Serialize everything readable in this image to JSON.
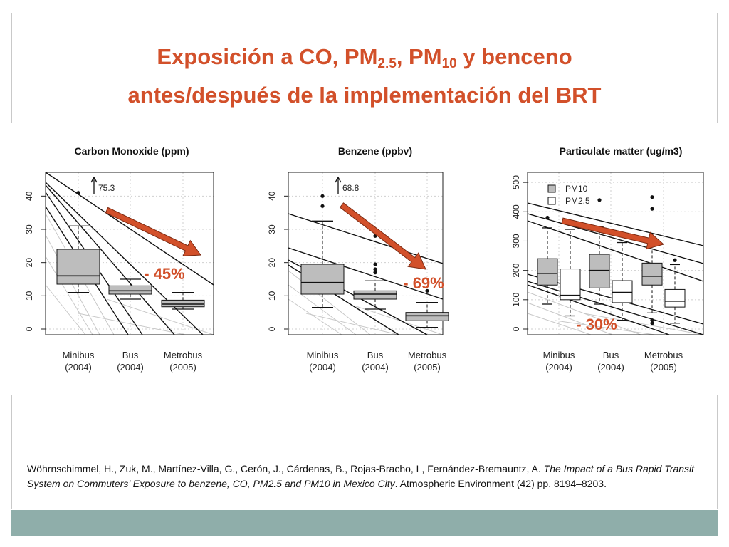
{
  "slide": {
    "title_parts": [
      "Exposición a CO, PM",
      "2.5",
      ", PM",
      "10",
      " y benceno"
    ],
    "title_line2": "antes/después de la implementación del BRT",
    "citation_authors": "Wöhrnschimmel, H., Zuk, M., Martínez-Villa, G., Cerón, J., Cárdenas, B., Rojas-Bracho, L, Fernández-Bremauntz, A. ",
    "citation_title": "The Impact of a Bus Rapid Transit System on Commuters’ Exposure to benzene, CO, PM2.5 and PM10 in Mexico City",
    "citation_journal": ". Atmospheric Environment (42) pp. 8194–8203.",
    "colors": {
      "title": "#d2502a",
      "arrow": "#d2502a",
      "box_fill": "#bdbdbd",
      "bar": "#8faeaa"
    }
  },
  "chart_data": [
    {
      "type": "boxplot",
      "title": "Carbon Monoxide (ppm)",
      "categories": [
        "Minibus\n(2004)",
        "Bus\n(2004)",
        "Metrobus\n(2005)"
      ],
      "ylim": [
        0,
        45
      ],
      "yticks": [
        0,
        10,
        20,
        30,
        40
      ],
      "boxes": [
        {
          "min": 11,
          "q1": 13.5,
          "median": 16,
          "q3": 24,
          "max": 31,
          "outliers": [
            41
          ]
        },
        {
          "min": 9,
          "q1": 10.5,
          "median": 11.5,
          "q3": 13,
          "max": 15,
          "outliers": []
        },
        {
          "min": 6,
          "q1": 6.7,
          "median": 7.5,
          "q3": 8.7,
          "max": 11,
          "outliers": []
        }
      ],
      "offscale_label": "75.3",
      "change_label": "- 45%",
      "grid": true
    },
    {
      "type": "boxplot",
      "title": "Benzene (ppbv)",
      "categories": [
        "Minibus\n(2004)",
        "Bus\n(2004)",
        "Metrobus\n(2005)"
      ],
      "ylim": [
        0,
        45
      ],
      "yticks": [
        0,
        10,
        20,
        30,
        40
      ],
      "boxes": [
        {
          "min": 6.5,
          "q1": 10.5,
          "median": 14,
          "q3": 19.5,
          "max": 32.5,
          "outliers": [
            37,
            40
          ]
        },
        {
          "min": 6,
          "q1": 9,
          "median": 10.5,
          "q3": 11.5,
          "max": 14.5,
          "outliers": [
            17,
            18,
            19.5,
            28
          ]
        },
        {
          "min": 0.5,
          "q1": 2.5,
          "median": 4,
          "q3": 5,
          "max": 8,
          "outliers": [
            11.5
          ]
        }
      ],
      "offscale_label": "68.8",
      "change_label": "- 69%",
      "grid": true
    },
    {
      "type": "boxplot",
      "title": "Particulate matter (ug/m3)",
      "categories": [
        "Minibus\n(2004)",
        "Bus\n(2004)",
        "Metrobus\n(2005)"
      ],
      "ylim": [
        0,
        510
      ],
      "yticks": [
        0,
        100,
        200,
        300,
        400,
        500
      ],
      "series": [
        {
          "name": "PM10",
          "fill": "#bdbdbd",
          "boxes": [
            {
              "min": 85,
              "q1": 150,
              "median": 190,
              "q3": 240,
              "max": 345,
              "outliers": [
                380
              ]
            },
            {
              "min": 85,
              "q1": 140,
              "median": 200,
              "q3": 255,
              "max": 350,
              "outliers": [
                440
              ]
            },
            {
              "min": 55,
              "q1": 150,
              "median": 180,
              "q3": 225,
              "max": 305,
              "outliers": [
                20,
                30,
                410,
                450
              ]
            }
          ]
        },
        {
          "name": "PM2.5",
          "fill": "#ffffff",
          "boxes": [
            {
              "min": 45,
              "q1": 100,
              "median": 115,
              "q3": 205,
              "max": 340,
              "outliers": []
            },
            {
              "min": 30,
              "q1": 90,
              "median": 125,
              "q3": 165,
              "max": 295,
              "outliers": [
                325
              ]
            },
            {
              "min": 20,
              "q1": 75,
              "median": 95,
              "q3": 135,
              "max": 220,
              "outliers": [
                235
              ]
            }
          ]
        }
      ],
      "change_label": "- 30%",
      "grid": true
    }
  ]
}
